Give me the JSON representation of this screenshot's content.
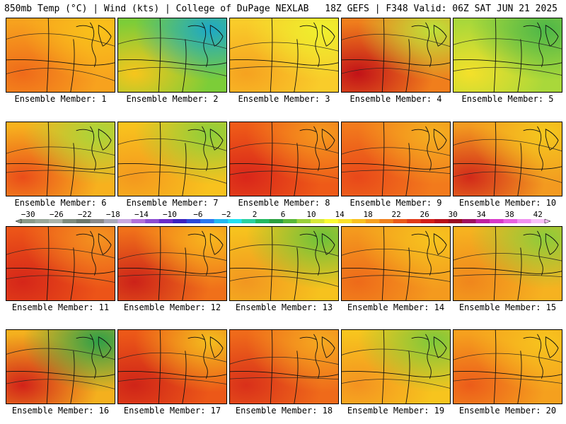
{
  "header": {
    "left": "850mb Temp (°C) | Wind (kts) | College of DuPage NEXLAB",
    "right": "18Z GEFS | F348 Valid: 06Z SAT JUN 21 2025"
  },
  "members": [
    {
      "label": "Ensemble Member: 1",
      "base": "#f7a21e",
      "warm": "#ef6a1a",
      "cool": "#f9c21a"
    },
    {
      "label": "Ensemble Member: 2",
      "base": "#7ccd38",
      "warm": "#f7c51c",
      "cool": "#1ca8c8"
    },
    {
      "label": "Ensemble Member: 3",
      "base": "#f9cc2a",
      "warm": "#f6a220",
      "cool": "#eef02e"
    },
    {
      "label": "Ensemble Member: 4",
      "base": "#f07e1c",
      "warm": "#c21218",
      "cool": "#bde23a"
    },
    {
      "label": "Ensemble Member: 5",
      "base": "#a9d83a",
      "warm": "#f4e02a",
      "cool": "#4cb648"
    },
    {
      "label": "Ensemble Member: 6",
      "base": "#f7b11e",
      "warm": "#ea4d1a",
      "cool": "#a8d63a"
    },
    {
      "label": "Ensemble Member: 7",
      "base": "#f8c21e",
      "warm": "#f4981e",
      "cool": "#8ccf3a"
    },
    {
      "label": "Ensemble Member: 8",
      "base": "#ee5a18",
      "warm": "#d9261a",
      "cool": "#f59a1e"
    },
    {
      "label": "Ensemble Member: 9",
      "base": "#f27a1c",
      "warm": "#e8481a",
      "cool": "#f5b020"
    },
    {
      "label": "Ensemble Member: 10",
      "base": "#f39a20",
      "warm": "#d22a1a",
      "cool": "#f4c81e"
    },
    {
      "label": "Ensemble Member: 11",
      "base": "#ec5418",
      "warm": "#d52619",
      "cool": "#f49420"
    },
    {
      "label": "Ensemble Member: 12",
      "base": "#f0701a",
      "warm": "#cc2219",
      "cool": "#f8b81e"
    },
    {
      "label": "Ensemble Member: 13",
      "base": "#f6c21e",
      "warm": "#f29620",
      "cool": "#6cc23a"
    },
    {
      "label": "Ensemble Member: 14",
      "base": "#f49a1e",
      "warm": "#ee6a1a",
      "cool": "#f6c41e"
    },
    {
      "label": "Ensemble Member: 15",
      "base": "#f6b220",
      "warm": "#f0861c",
      "cool": "#8ccc3a"
    },
    {
      "label": "Ensemble Member: 16",
      "base": "#f4b01e",
      "warm": "#d22219",
      "cool": "#2ea048"
    },
    {
      "label": "Ensemble Member: 17",
      "base": "#ec5818",
      "warm": "#cf2418",
      "cool": "#f4be1e"
    },
    {
      "label": "Ensemble Member: 18",
      "base": "#ef6a1a",
      "warm": "#d9301a",
      "cool": "#f5aa20"
    },
    {
      "label": "Ensemble Member: 19",
      "base": "#f7c41e",
      "warm": "#f49220",
      "cool": "#7ec83a"
    },
    {
      "label": "Ensemble Member: 20",
      "base": "#f5a01e",
      "warm": "#ec5c1a",
      "cool": "#f7c41e"
    }
  ],
  "colorbar": {
    "ticks": [
      "−30",
      "−26",
      "−22",
      "−18",
      "−14",
      "−10",
      "−6",
      "−2",
      "2",
      "6",
      "10",
      "14",
      "18",
      "22",
      "26",
      "30",
      "34",
      "38",
      "42"
    ],
    "colors": [
      "#8a9a8a",
      "#9aa89a",
      "#aab4aa",
      "#7e8c7e",
      "#6c786c",
      "#8a8a8a",
      "#a8a8b8",
      "#c8a8e0",
      "#b070d8",
      "#8c4cd0",
      "#6a2cc8",
      "#3a22c0",
      "#2a48d8",
      "#2a78f0",
      "#22b8f0",
      "#22e0f0",
      "#2ad0a0",
      "#22b860",
      "#2aa040",
      "#58b838",
      "#9ad03a",
      "#d8e838",
      "#fafa30",
      "#fae02a",
      "#f8c020",
      "#f6a020",
      "#f0801c",
      "#ea5a1a",
      "#e03a18",
      "#d21e18",
      "#b8101a",
      "#9a0a20",
      "#a01060",
      "#c020a0",
      "#d838c8",
      "#e860e0",
      "#f090f0",
      "#f8c0f8"
    ]
  }
}
